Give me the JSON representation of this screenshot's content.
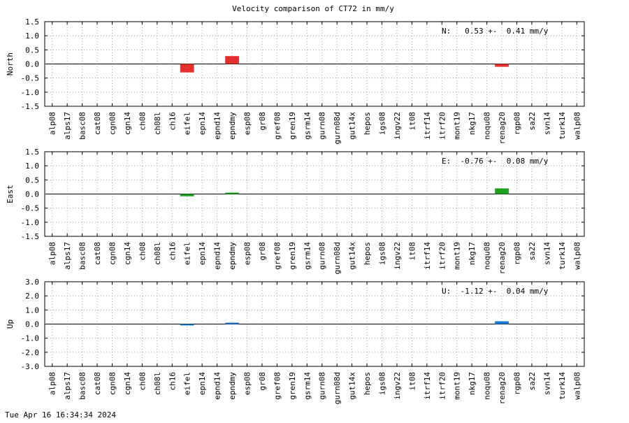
{
  "page": {
    "title": "Velocity comparison of CT72 in mm/y",
    "timestamp": "Tue Apr 16 16:34:34 2024"
  },
  "chart_data": [
    {
      "type": "bar",
      "ylabel": "North",
      "annotation": "N:   0.53 +-  0.41 mm/y",
      "ylim": [
        -1.5,
        1.5
      ],
      "yticks": [
        "-1.5",
        "-1.0",
        "-0.5",
        "0.0",
        "0.5",
        "1.0",
        "1.5"
      ],
      "grid": true,
      "color": "#e53030",
      "categories": [
        "alp08",
        "alps17",
        "basc08",
        "cat08",
        "cgn08",
        "cgn14",
        "ch08",
        "ch08l",
        "ch16",
        "eifel",
        "epn14",
        "epnd14",
        "epndmy",
        "esp08",
        "gr08",
        "gref08",
        "gren19",
        "gsrm14",
        "gurn08",
        "gurn08d",
        "gut14x",
        "hepos",
        "igs08",
        "ingv22",
        "it08",
        "itrf14",
        "itrf20",
        "mont19",
        "nkg17",
        "noqu08",
        "renag20",
        "rgp08",
        "sa22",
        "svn14",
        "turk14",
        "walp08"
      ],
      "values": [
        null,
        null,
        null,
        null,
        null,
        null,
        null,
        null,
        null,
        -0.3,
        null,
        null,
        0.28,
        null,
        null,
        null,
        null,
        null,
        null,
        null,
        null,
        null,
        null,
        null,
        null,
        null,
        null,
        null,
        null,
        null,
        -0.1,
        null,
        null,
        null,
        null,
        null
      ]
    },
    {
      "type": "bar",
      "ylabel": "East",
      "annotation": "E:  -0.76 +-  0.08 mm/y",
      "ylim": [
        -1.5,
        1.5
      ],
      "yticks": [
        "-1.5",
        "-1.0",
        "-0.5",
        "0.0",
        "0.5",
        "1.0",
        "1.5"
      ],
      "grid": true,
      "color": "#20a020",
      "categories": [
        "alp08",
        "alps17",
        "basc08",
        "cat08",
        "cgn08",
        "cgn14",
        "ch08",
        "ch08l",
        "ch16",
        "eifel",
        "epn14",
        "epnd14",
        "epndmy",
        "esp08",
        "gr08",
        "gref08",
        "gren19",
        "gsrm14",
        "gurn08",
        "gurn08d",
        "gut14x",
        "hepos",
        "igs08",
        "ingv22",
        "it08",
        "itrf14",
        "itrf20",
        "mont19",
        "nkg17",
        "noqu08",
        "renag20",
        "rgp08",
        "sa22",
        "svn14",
        "turk14",
        "walp08"
      ],
      "values": [
        null,
        null,
        null,
        null,
        null,
        null,
        null,
        null,
        null,
        -0.08,
        null,
        null,
        0.04,
        null,
        null,
        null,
        null,
        null,
        null,
        null,
        null,
        null,
        null,
        null,
        null,
        null,
        null,
        null,
        null,
        null,
        0.2,
        null,
        null,
        null,
        null,
        null
      ]
    },
    {
      "type": "bar",
      "ylabel": "Up",
      "annotation": "U:  -1.12 +-  0.04 mm/y",
      "ylim": [
        -3.0,
        3.0
      ],
      "yticks": [
        "-3.0",
        "-2.0",
        "-1.0",
        "0.0",
        "1.0",
        "2.0",
        "3.0"
      ],
      "grid": true,
      "color": "#1a7ad4",
      "categories": [
        "alp08",
        "alps17",
        "basc08",
        "cat08",
        "cgn08",
        "cgn14",
        "ch08",
        "ch08l",
        "ch16",
        "eifel",
        "epn14",
        "epnd14",
        "epndmy",
        "esp08",
        "gr08",
        "gref08",
        "gren19",
        "gsrm14",
        "gurn08",
        "gurn08d",
        "gut14x",
        "hepos",
        "igs08",
        "ingv22",
        "it08",
        "itrf14",
        "itrf20",
        "mont19",
        "nkg17",
        "noqu08",
        "renag20",
        "rgp08",
        "sa22",
        "svn14",
        "turk14",
        "walp08"
      ],
      "values": [
        null,
        null,
        null,
        null,
        null,
        null,
        null,
        null,
        null,
        -0.05,
        null,
        null,
        0.03,
        null,
        null,
        null,
        null,
        null,
        null,
        null,
        null,
        null,
        null,
        null,
        null,
        null,
        null,
        null,
        null,
        null,
        0.2,
        null,
        null,
        null,
        null,
        null
      ]
    }
  ]
}
